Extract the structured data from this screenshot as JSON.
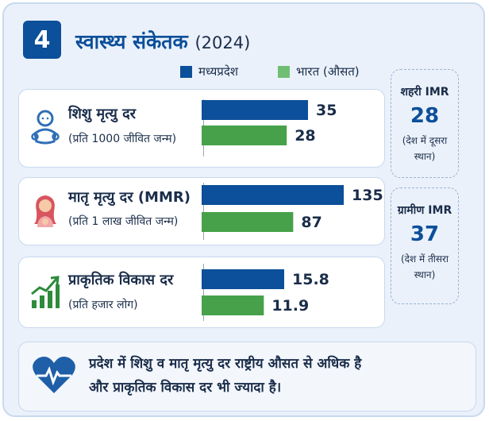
{
  "header": {
    "number": "4",
    "title": "स्वास्थ्य संकेतक",
    "year": "(2024)"
  },
  "legend": {
    "mp": "मध्यप्रदेश",
    "india": "भारत (औसत)"
  },
  "colors": {
    "mp": "#0c4f9a",
    "india": "#46a14a",
    "accent": "#0c4f9a"
  },
  "panels": [
    {
      "icon": "baby-icon",
      "label": "शिशु मृत्यु दर",
      "sub": "(प्रति 1000 जीवित जन्म)",
      "mp": "35",
      "india": "28"
    },
    {
      "icon": "mother-icon",
      "label": "मातृ मृत्यु दर (MMR)",
      "sub": "(प्रति 1 लाख जीवित जन्म)",
      "mp": "135",
      "india": "87"
    },
    {
      "icon": "growth-chart-icon",
      "label": "प्राकृतिक विकास दर",
      "sub": "(प्रति हजार लोग)",
      "mp": "15.8",
      "india": "11.9"
    }
  ],
  "side": [
    {
      "label": "शहरी IMR",
      "value": "28",
      "note1": "(देश में दूसरा",
      "note2": "स्थान)"
    },
    {
      "label": "ग्रामीण IMR",
      "value": "37",
      "note1": "(देश में तीसरा",
      "note2": "स्थान)"
    }
  ],
  "footer": {
    "icon": "heart-pulse-icon",
    "line1": "प्रदेश में शिशु व मातृ मृत्यु दर राष्ट्रीय औसत से अधिक है",
    "line2": "और प्राकृतिक विकास दर भी ज्यादा है।"
  },
  "chart_data": [
    {
      "type": "bar",
      "title": "शिशु मृत्यु दर",
      "categories": [
        "मध्यप्रदेश",
        "भारत (औसत)"
      ],
      "values": [
        35,
        28
      ]
    },
    {
      "type": "bar",
      "title": "मातृ मृत्यु दर (MMR)",
      "categories": [
        "मध्यप्रदेश",
        "भारत (औसत)"
      ],
      "values": [
        135,
        87
      ]
    },
    {
      "type": "bar",
      "title": "प्राकृतिक विकास दर",
      "categories": [
        "मध्यप्रदेश",
        "भारत (औसत)"
      ],
      "values": [
        15.8,
        11.9
      ]
    }
  ]
}
